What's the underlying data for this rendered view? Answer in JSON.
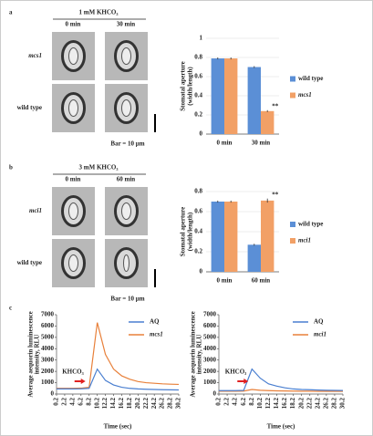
{
  "panel_labels": [
    "a",
    "b",
    "c"
  ],
  "images": [
    {
      "header": "1 mM KHCO₃",
      "columns": [
        "0 min",
        "30 min"
      ],
      "rows": [
        "mcs1",
        "wild type"
      ],
      "scale": "Bar = 10 μm"
    },
    {
      "header": "3 mM KHCO₃",
      "columns": [
        "0 min",
        "60 min"
      ],
      "rows": [
        "mci1",
        "wild type"
      ],
      "scale": "Bar = 10 μm"
    }
  ],
  "chart_data": [
    {
      "type": "bar",
      "y_label": [
        "Stomatal aperture",
        "(width/length)"
      ],
      "categories": [
        "0 min",
        "30 min"
      ],
      "series": [
        {
          "name": "wild type",
          "color": "#5b8fd6",
          "values": [
            0.79,
            0.7
          ],
          "errors": [
            0.01,
            0.01
          ]
        },
        {
          "name": "mcs1",
          "color": "#f2a066",
          "values": [
            0.79,
            0.24
          ],
          "errors": [
            0.01,
            0.01
          ]
        }
      ],
      "ylim": [
        0,
        1
      ],
      "yticks": [
        0,
        0.2,
        0.4,
        0.6,
        0.8,
        1
      ],
      "annotation": "**"
    },
    {
      "type": "bar",
      "y_label": [
        "Stomatal aperture",
        "(width/length)"
      ],
      "categories": [
        "0 min",
        "60 min"
      ],
      "series": [
        {
          "name": "wild type",
          "color": "#5b8fd6",
          "values": [
            0.7,
            0.27
          ],
          "errors": [
            0.01,
            0.01
          ]
        },
        {
          "name": "mci1",
          "color": "#f2a066",
          "values": [
            0.7,
            0.71
          ],
          "errors": [
            0.01,
            0.02
          ]
        }
      ],
      "ylim": [
        0,
        0.8
      ],
      "yticks": [
        0,
        0.2,
        0.4,
        0.6,
        0.8
      ],
      "annotation": "**"
    },
    {
      "type": "line",
      "y_label": [
        "Average aequorin luminescence",
        "intensity, RLU"
      ],
      "x_label": "Time (sec)",
      "x": [
        0.2,
        2.2,
        4.2,
        6.2,
        8.2,
        10.2,
        12.2,
        14.2,
        16.2,
        18.2,
        20.2,
        22.2,
        24.2,
        26.2,
        28.2,
        30.2
      ],
      "xticks": [
        0.2,
        2.2,
        4.2,
        6.2,
        8.2,
        10.2,
        12.2,
        14.2,
        16.2,
        18.2,
        20.2,
        22.2,
        24.2,
        26.2,
        28.2,
        30.2
      ],
      "xlim": [
        0.2,
        30.2
      ],
      "series": [
        {
          "name": "AQ",
          "color": "#4a7fd0",
          "values": [
            450,
            450,
            450,
            460,
            500,
            2200,
            1200,
            800,
            600,
            500,
            450,
            420,
            400,
            380,
            370,
            360
          ]
        },
        {
          "name": "mcs1",
          "color": "#e8803a",
          "values": [
            500,
            500,
            500,
            520,
            600,
            6300,
            3500,
            2200,
            1600,
            1300,
            1100,
            1000,
            950,
            900,
            870,
            850
          ]
        }
      ],
      "ylim": [
        0,
        7000
      ],
      "yticks": [
        0,
        1000,
        2000,
        3000,
        4000,
        5000,
        6000,
        7000
      ],
      "annotation": "KHCO₃"
    },
    {
      "type": "line",
      "y_label": [
        "Average aequorin luminescence",
        "intensity, RLU"
      ],
      "x_label": "Time (sec)",
      "x": [
        0.2,
        2.2,
        4.2,
        6.2,
        8.2,
        10.2,
        12.2,
        14.2,
        16.2,
        18.2,
        20.2,
        22.2,
        24.2,
        26.2,
        28.2,
        30.2
      ],
      "xticks": [
        0.2,
        2.2,
        4.2,
        6.2,
        8.2,
        10.2,
        12.2,
        14.2,
        16.2,
        18.2,
        20.2,
        22.2,
        24.2,
        26.2,
        28.2,
        30.2
      ],
      "xlim": [
        0.2,
        30.2
      ],
      "series": [
        {
          "name": "AQ",
          "color": "#4a7fd0",
          "values": [
            300,
            300,
            300,
            320,
            2200,
            1400,
            900,
            700,
            550,
            450,
            400,
            380,
            350,
            330,
            320,
            310
          ]
        },
        {
          "name": "mci1",
          "color": "#e8803a",
          "values": [
            250,
            250,
            250,
            260,
            400,
            330,
            300,
            280,
            270,
            260,
            250,
            250,
            240,
            240,
            240,
            240
          ]
        }
      ],
      "ylim": [
        0,
        7000
      ],
      "yticks": [
        0,
        1000,
        2000,
        3000,
        4000,
        5000,
        6000,
        7000
      ],
      "annotation": "KHCO₃"
    }
  ]
}
